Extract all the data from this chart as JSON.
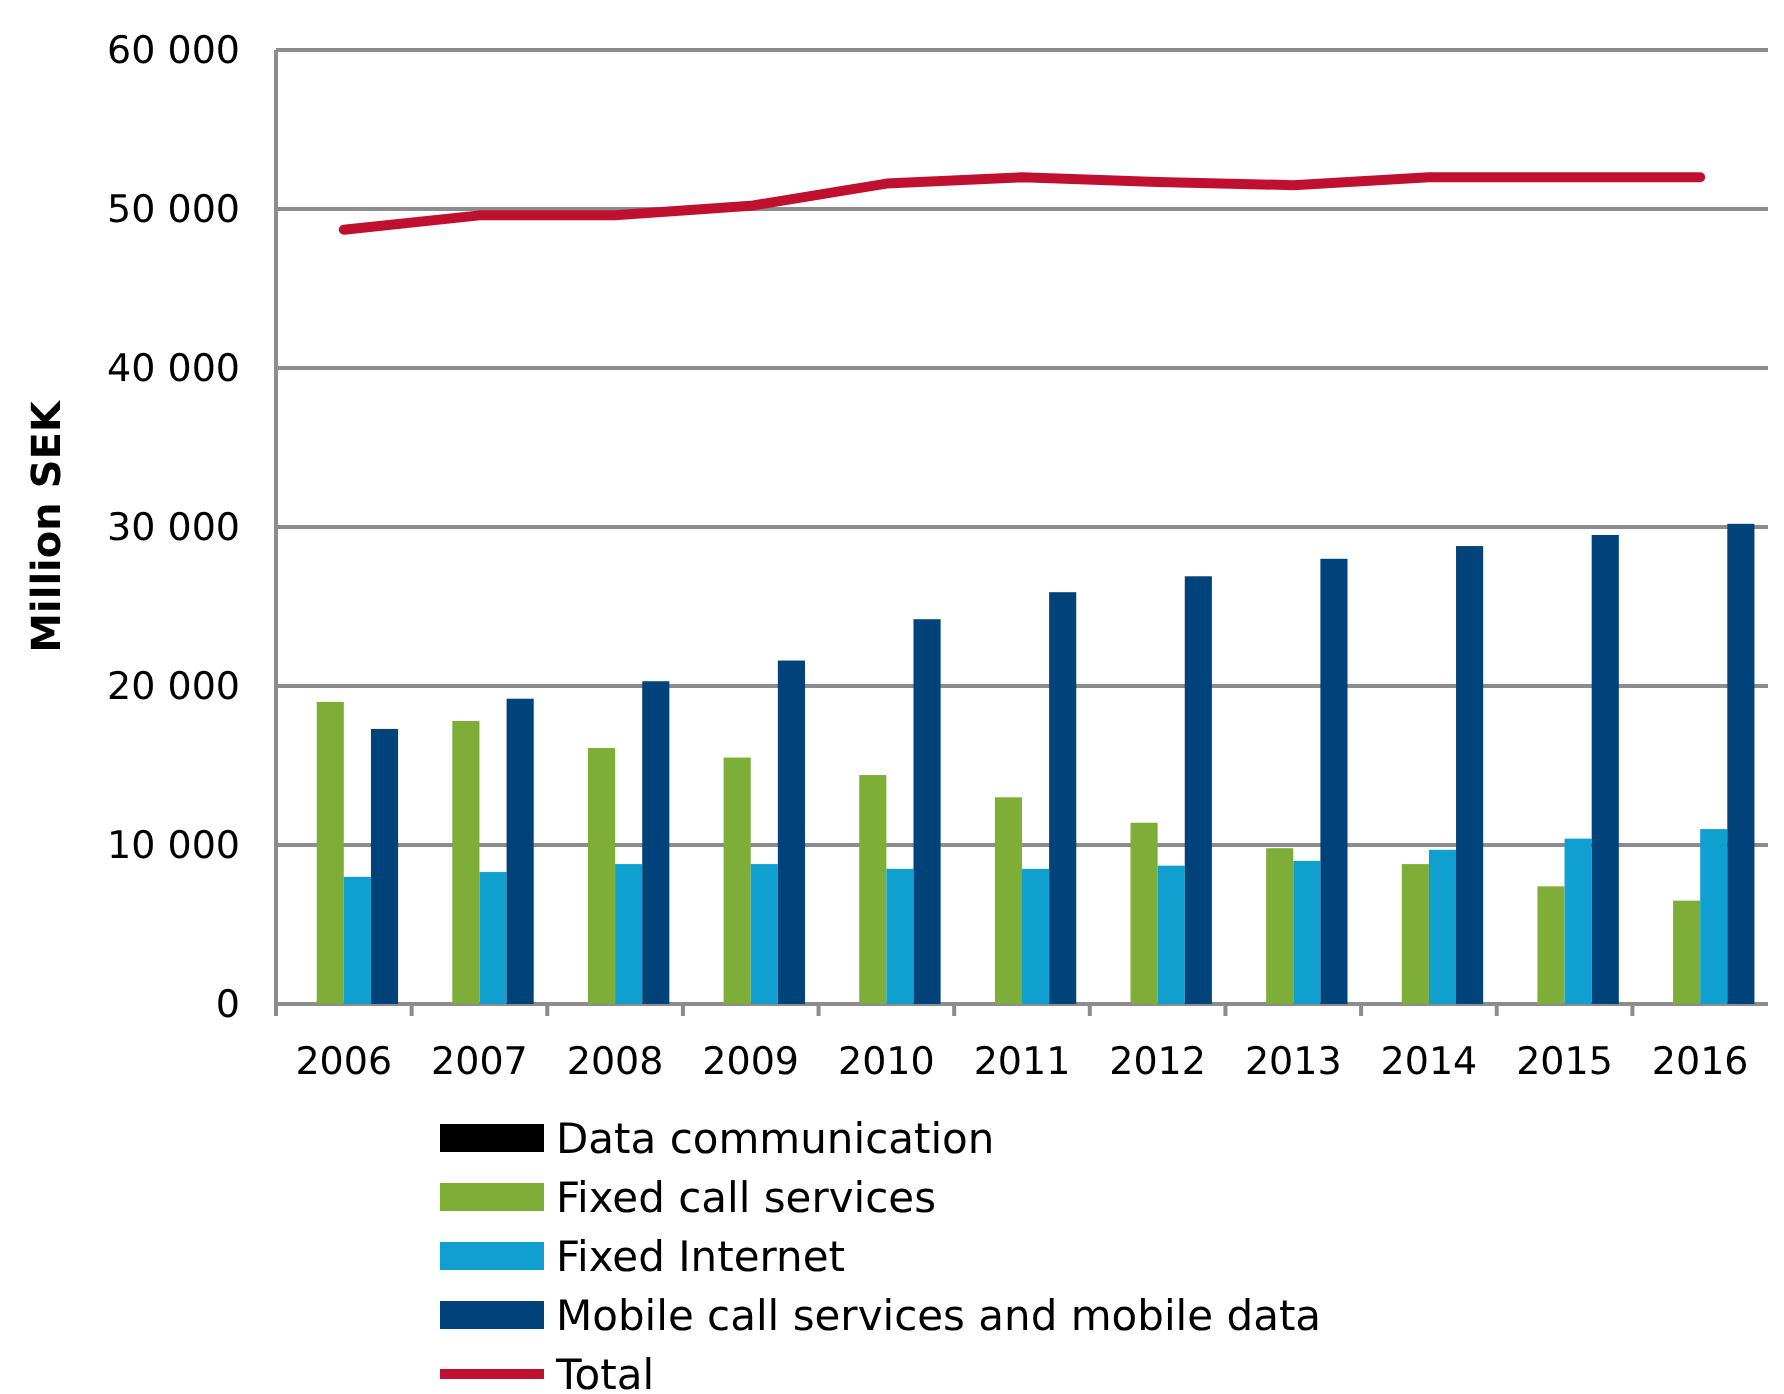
{
  "chart_data": {
    "type": "bar",
    "ylabel": "Million SEK",
    "categories": [
      "2006",
      "2007",
      "2008",
      "2009",
      "2010",
      "2011",
      "2012",
      "2013",
      "2014",
      "2015",
      "2016"
    ],
    "series": [
      {
        "name": "Data communication",
        "color": "#000000",
        "values": [
          null,
          null,
          null,
          null,
          null,
          null,
          null,
          null,
          null,
          null,
          null
        ]
      },
      {
        "name": "Fixed call services",
        "color": "#7fae38",
        "values": [
          19000,
          17800,
          16100,
          15500,
          14400,
          13000,
          11400,
          9800,
          8800,
          7400,
          6500
        ]
      },
      {
        "name": "Fixed Internet",
        "color": "#10a0d0",
        "values": [
          8000,
          8300,
          8800,
          8800,
          8500,
          8500,
          8700,
          9000,
          9700,
          10400,
          11000
        ]
      },
      {
        "name": "Mobile call services and mobile data",
        "color": "#00427a",
        "values": [
          17300,
          19200,
          20300,
          21600,
          24200,
          25900,
          26900,
          28000,
          28800,
          29500,
          30200
        ]
      },
      {
        "name": "Total",
        "type": "line",
        "color": "#c0102f",
        "values": [
          48700,
          49600,
          49600,
          50200,
          51600,
          52000,
          51700,
          51500,
          52000,
          52000,
          52000
        ]
      }
    ],
    "ylim": [
      0,
      60000
    ],
    "yticks": [
      {
        "value": 0,
        "label": "0"
      },
      {
        "value": 10000,
        "label": "10 000"
      },
      {
        "value": 20000,
        "label": "20 000"
      },
      {
        "value": 30000,
        "label": "30 000"
      },
      {
        "value": 40000,
        "label": "40 000"
      },
      {
        "value": 50000,
        "label": "50 000"
      },
      {
        "value": 60000,
        "label": "60 000"
      }
    ],
    "grid": "y",
    "legend": "bottom"
  }
}
